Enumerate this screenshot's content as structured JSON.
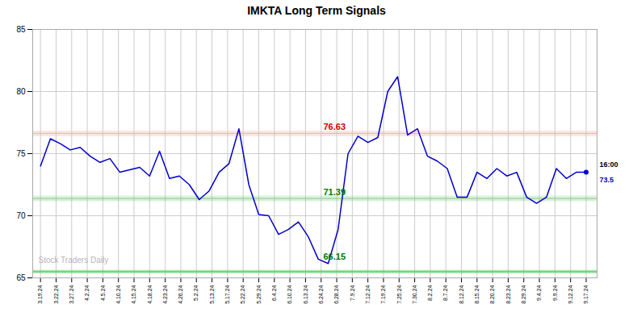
{
  "chart_data": {
    "type": "line",
    "title": "IMKTA Long Term Signals",
    "color": "#0000cc",
    "grid": true,
    "xlim": [
      -0.5,
      35.7
    ],
    "xticks": [
      {
        "value": 0,
        "label": "3.19.24"
      },
      {
        "value": 1,
        "label": "3.22.24"
      },
      {
        "value": 2,
        "label": "3.27.24"
      },
      {
        "value": 3,
        "label": "4.2.24"
      },
      {
        "value": 4,
        "label": "4.5.24"
      },
      {
        "value": 5,
        "label": "4.10.24"
      },
      {
        "value": 6,
        "label": "4.15.24"
      },
      {
        "value": 7,
        "label": "4.18.24"
      },
      {
        "value": 8,
        "label": "4.23.24"
      },
      {
        "value": 9,
        "label": "4.26.24"
      },
      {
        "value": 10,
        "label": "5.2.24"
      },
      {
        "value": 11,
        "label": "5.13.24"
      },
      {
        "value": 12,
        "label": "5.17.24"
      },
      {
        "value": 13,
        "label": "5.22.24"
      },
      {
        "value": 14,
        "label": "5.29.24"
      },
      {
        "value": 15,
        "label": "6.4.24"
      },
      {
        "value": 16,
        "label": "6.10.24"
      },
      {
        "value": 17,
        "label": "6.13.24"
      },
      {
        "value": 18,
        "label": "6.24.24"
      },
      {
        "value": 19,
        "label": "6.28.24"
      },
      {
        "value": 20,
        "label": "7.9.24"
      },
      {
        "value": 21,
        "label": "7.12.24"
      },
      {
        "value": 22,
        "label": "7.19.24"
      },
      {
        "value": 23,
        "label": "7.25.24"
      },
      {
        "value": 24,
        "label": "7.30.24"
      },
      {
        "value": 25,
        "label": "8.2.24"
      },
      {
        "value": 26,
        "label": "8.7.24"
      },
      {
        "value": 27,
        "label": "8.12.24"
      },
      {
        "value": 28,
        "label": "8.15.24"
      },
      {
        "value": 29,
        "label": "8.20.24"
      },
      {
        "value": 30,
        "label": "8.23.24"
      },
      {
        "value": 31,
        "label": "8.29.24"
      },
      {
        "value": 32,
        "label": "9.4.24"
      },
      {
        "value": 33,
        "label": "9.9.24"
      },
      {
        "value": 34,
        "label": "9.12.24"
      },
      {
        "value": 35,
        "label": "9.17.24"
      }
    ],
    "ylim": [
      65,
      85
    ],
    "yticks": [
      65,
      70,
      75,
      80,
      85
    ],
    "x": [
      0,
      0.636364,
      1.272727,
      1.909091,
      2.545455,
      3.181818,
      3.818182,
      4.454545,
      5.090909,
      5.727273,
      6.363636,
      7,
      7.636364,
      8.272727,
      8.909091,
      9.545455,
      10.181818,
      10.818182,
      11.454545,
      12.090909,
      12.727273,
      13.363636,
      14,
      14.636364,
      15.272727,
      15.909091,
      16.545455,
      17.181818,
      17.818182,
      18.454545,
      19.090909,
      19.727273,
      20.363636,
      21,
      21.636364,
      22.272727,
      22.909091,
      23.545455,
      24.181818,
      24.818182,
      25.454545,
      26.090909,
      26.727273,
      27.363636,
      28,
      28.636364,
      29.272727,
      29.909091,
      30.545455,
      31.181818,
      31.818182,
      32.454545,
      33.090909,
      33.727273,
      34.363636,
      35
    ],
    "values": [
      74.0,
      76.2,
      75.8,
      75.3,
      75.5,
      74.8,
      74.3,
      74.6,
      73.5,
      73.7,
      73.9,
      73.2,
      75.2,
      73.0,
      73.2,
      72.5,
      71.3,
      72.0,
      73.5,
      74.2,
      77.0,
      72.5,
      70.1,
      70.0,
      68.5,
      68.9,
      69.5,
      68.3,
      66.5,
      66.15,
      68.9,
      75.0,
      76.4,
      75.9,
      76.3,
      80.0,
      81.2,
      76.5,
      77.0,
      74.8,
      74.4,
      73.8,
      71.5,
      71.5,
      73.5,
      73.0,
      73.8,
      73.2,
      73.5,
      71.5,
      71.0,
      71.5,
      73.8,
      73.0,
      73.5,
      73.5
    ],
    "levels": [
      {
        "y": 76.63,
        "color": "#ffaaaa"
      },
      {
        "y": 71.39,
        "color": "#88cc88"
      },
      {
        "y": 65.5,
        "color": "#55cc55"
      }
    ],
    "annotations": [
      {
        "text": "76.63",
        "y": 76.63,
        "color": "#cc0000"
      },
      {
        "text": "71.39",
        "y": 71.39,
        "color": "#007700"
      },
      {
        "text": "66.15",
        "y": 66.15,
        "color": "#007700"
      }
    ],
    "last_point": {
      "value": 73.5,
      "label": "16:00",
      "color": "#0000cc"
    },
    "watermark": {
      "text": "Stock Traders Daily",
      "color": "#aaaaaa"
    }
  }
}
